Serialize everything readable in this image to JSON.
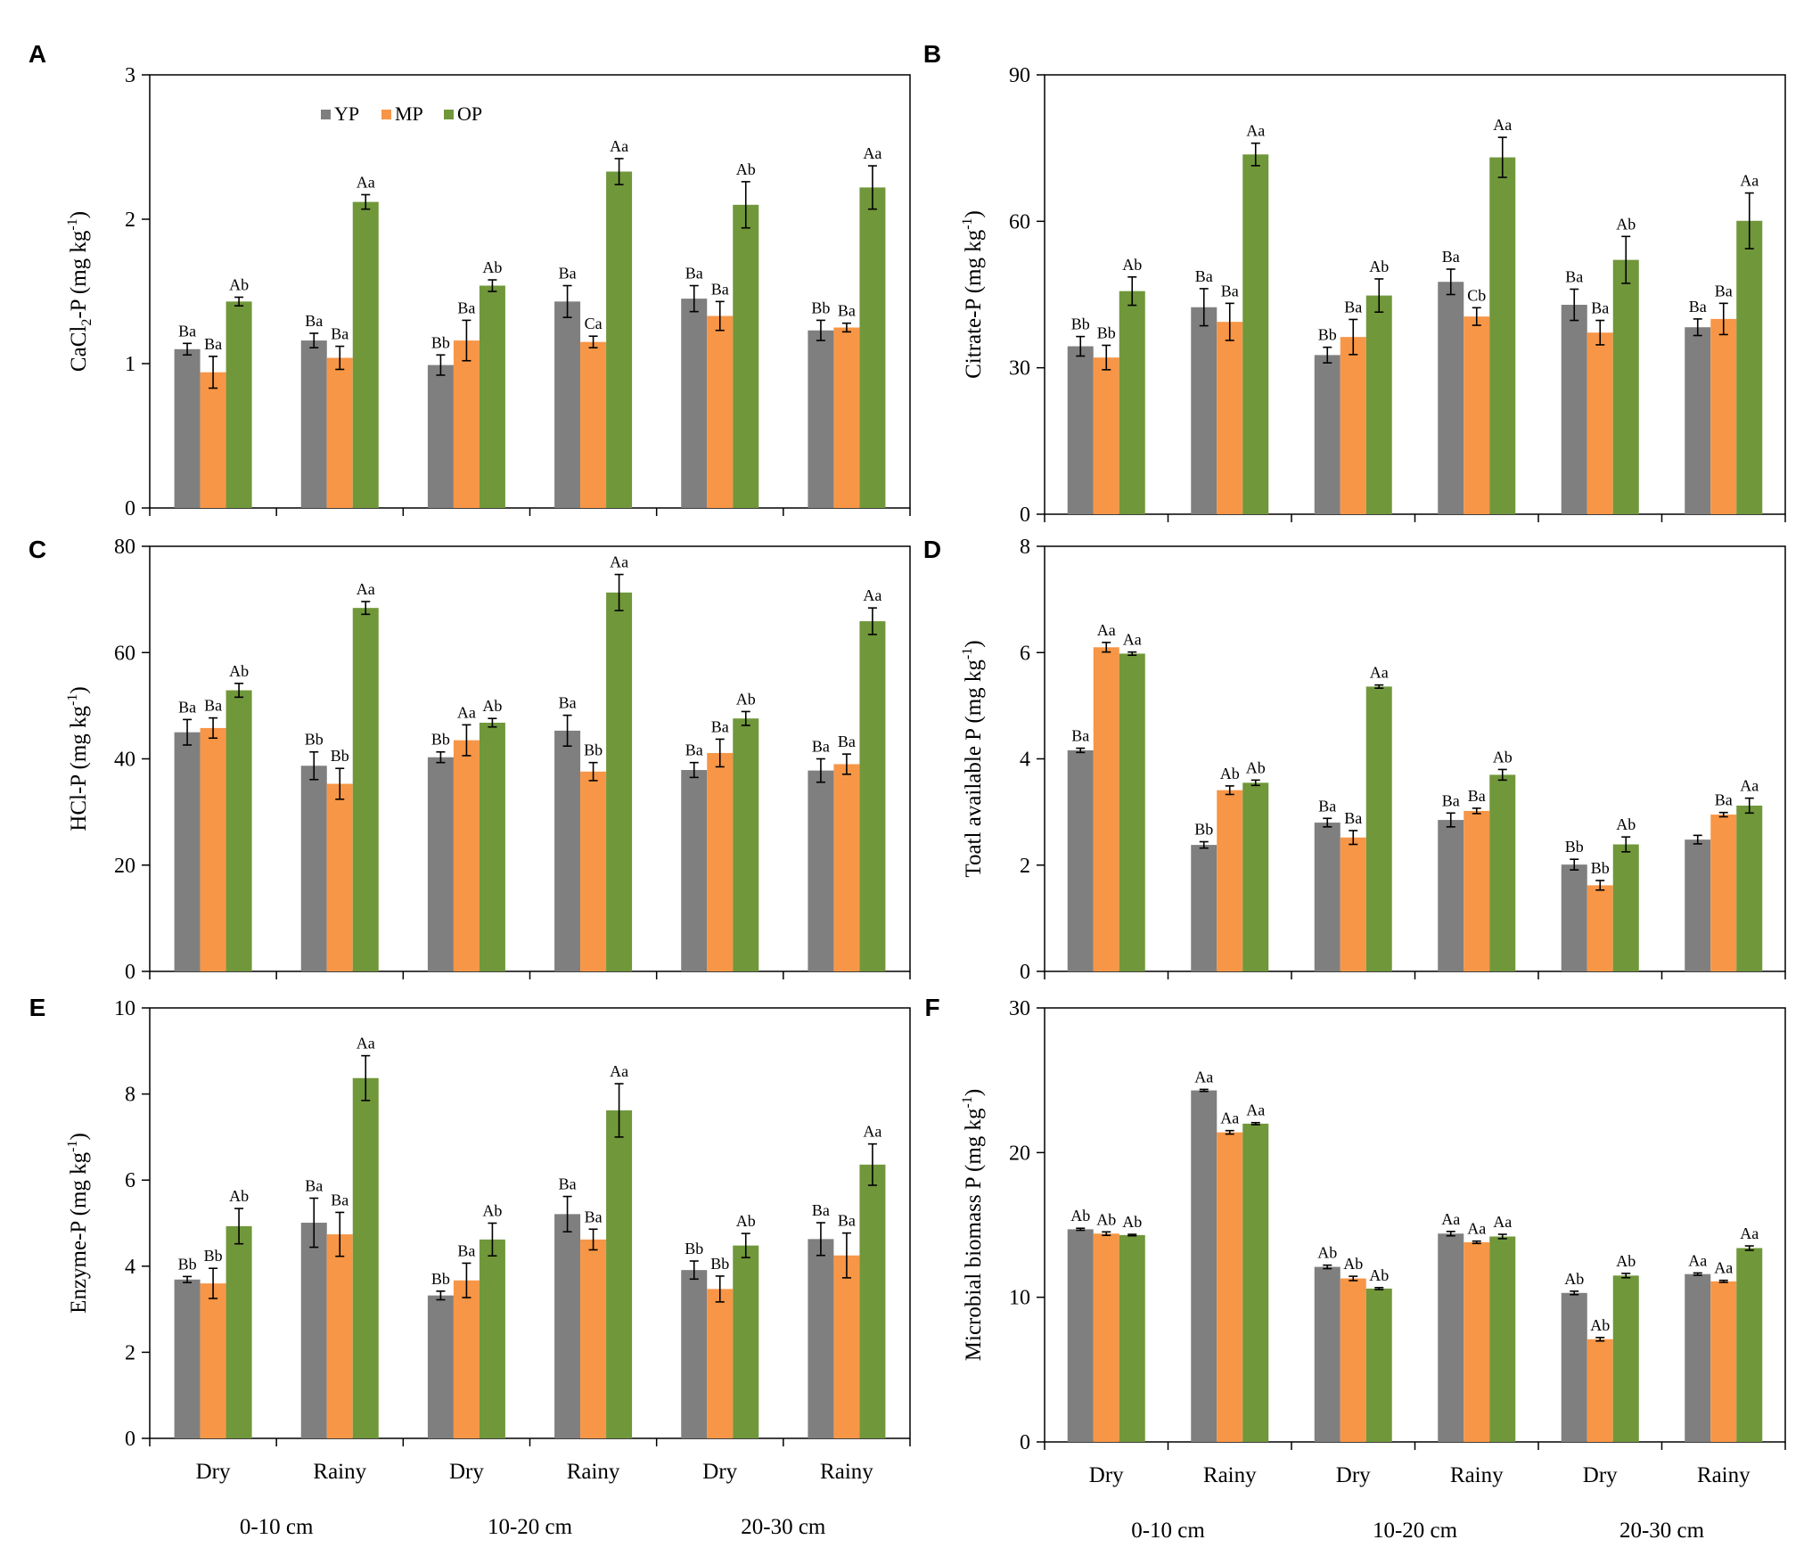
{
  "colors": {
    "YP": "#7f7f7f",
    "MP": "#f79646",
    "OP": "#70973a"
  },
  "legend": [
    "YP",
    "MP",
    "OP"
  ],
  "x_categories": [
    "Dry",
    "Rainy",
    "Dry",
    "Rainy",
    "Dry",
    "Rainy"
  ],
  "depth_groups": [
    "0-10 cm",
    "10-20 cm",
    "20-30 cm"
  ],
  "chart_data": [
    {
      "panel": "A",
      "type": "bar",
      "ylabel_main": "CaCl",
      "ylabel_sub": "2",
      "ylabel_rest": "-P (mg kg",
      "ylabel_sup": "-1",
      "ylabel_end": ")",
      "ylim": [
        0,
        3
      ],
      "yticks": [
        0,
        1,
        2,
        3
      ],
      "categories": [
        "Dry",
        "Rainy",
        "Dry",
        "Rainy",
        "Dry",
        "Rainy"
      ],
      "series": [
        {
          "name": "YP",
          "values": [
            1.1,
            1.16,
            0.99,
            1.43,
            1.45,
            1.23
          ],
          "errors": [
            0.04,
            0.05,
            0.07,
            0.11,
            0.09,
            0.07
          ],
          "labels": [
            "Ba",
            "Ba",
            "Bb",
            "Ba",
            "Ba",
            "Bb"
          ]
        },
        {
          "name": "MP",
          "values": [
            0.94,
            1.04,
            1.16,
            1.15,
            1.33,
            1.25
          ],
          "errors": [
            0.11,
            0.08,
            0.14,
            0.04,
            0.1,
            0.03
          ],
          "labels": [
            "Ba",
            "Ba",
            "Ba",
            "Ca",
            "Ba",
            "Ba"
          ]
        },
        {
          "name": "OP",
          "values": [
            1.43,
            2.12,
            1.54,
            2.33,
            2.1,
            2.22
          ],
          "errors": [
            0.03,
            0.05,
            0.04,
            0.09,
            0.16,
            0.15
          ],
          "labels": [
            "Ab",
            "Aa",
            "Ab",
            "Aa",
            "Ab",
            "Aa"
          ]
        }
      ]
    },
    {
      "panel": "B",
      "type": "bar",
      "ylabel_main": "Citrate-P (mg kg",
      "ylabel_sub": "",
      "ylabel_rest": "",
      "ylabel_sup": "-1",
      "ylabel_end": ")",
      "ylim": [
        0,
        90
      ],
      "yticks": [
        0,
        30,
        60,
        90
      ],
      "categories": [
        "Dry",
        "Rainy",
        "Dry",
        "Rainy",
        "Dry",
        "Rainy"
      ],
      "series": [
        {
          "name": "YP",
          "values": [
            34.4,
            42.4,
            32.6,
            47.6,
            42.9,
            38.3
          ],
          "errors": [
            2.0,
            3.8,
            1.6,
            2.6,
            3.2,
            1.7
          ],
          "labels": [
            "Bb",
            "Ba",
            "Bb",
            "Ba",
            "Ba",
            "Ba"
          ]
        },
        {
          "name": "MP",
          "values": [
            32.1,
            39.4,
            36.3,
            40.5,
            37.2,
            40.0
          ],
          "errors": [
            2.5,
            3.8,
            3.6,
            1.8,
            2.5,
            3.2
          ],
          "labels": [
            "Bb",
            "Ba",
            "Ba",
            "Cb",
            "Ba",
            "Ba"
          ]
        },
        {
          "name": "OP",
          "values": [
            45.7,
            73.7,
            44.8,
            73.1,
            52.1,
            60.1
          ],
          "errors": [
            2.9,
            2.3,
            3.4,
            4.1,
            4.8,
            5.7
          ],
          "labels": [
            "Ab",
            "Aa",
            "Ab",
            "Aa",
            "Ab",
            "Aa"
          ]
        }
      ]
    },
    {
      "panel": "C",
      "type": "bar",
      "ylabel_main": "HCl-P (mg kg",
      "ylabel_sub": "",
      "ylabel_rest": "",
      "ylabel_sup": "-1",
      "ylabel_end": ")",
      "ylim": [
        0,
        80
      ],
      "yticks": [
        0,
        20,
        40,
        60,
        80
      ],
      "categories": [
        "Dry",
        "Rainy",
        "Dry",
        "Rainy",
        "Dry",
        "Rainy"
      ],
      "series": [
        {
          "name": "YP",
          "values": [
            45.0,
            38.7,
            40.3,
            45.3,
            37.9,
            37.8
          ],
          "errors": [
            2.4,
            2.6,
            1.0,
            2.9,
            1.4,
            2.2
          ],
          "labels": [
            "Ba",
            "Bb",
            "Bb",
            "Ba",
            "Ba",
            "Ba"
          ]
        },
        {
          "name": "MP",
          "values": [
            45.8,
            35.3,
            43.5,
            37.6,
            41.1,
            39.0
          ],
          "errors": [
            1.9,
            2.9,
            2.9,
            1.7,
            2.6,
            1.9
          ],
          "labels": [
            "Ba",
            "Bb",
            "Aa",
            "Bb",
            "Ba",
            "Ba"
          ]
        },
        {
          "name": "OP",
          "values": [
            52.9,
            68.4,
            46.8,
            71.3,
            47.6,
            65.9
          ],
          "errors": [
            1.3,
            1.2,
            0.8,
            3.4,
            1.3,
            2.5
          ],
          "labels": [
            "Ab",
            "Aa",
            "Ab",
            "Aa",
            "Ab",
            "Aa"
          ]
        }
      ]
    },
    {
      "panel": "D",
      "type": "bar",
      "ylabel_main": "Toatl available P (mg kg",
      "ylabel_sub": "",
      "ylabel_rest": "",
      "ylabel_sup": "-1",
      "ylabel_end": ")",
      "ylim": [
        0,
        8
      ],
      "yticks": [
        0,
        2,
        4,
        6,
        8
      ],
      "categories": [
        "Dry",
        "Rainy",
        "Dry",
        "Rainy",
        "Dry",
        "Rainy"
      ],
      "series": [
        {
          "name": "YP",
          "values": [
            4.16,
            2.38,
            2.8,
            2.85,
            2.01,
            2.48
          ],
          "errors": [
            0.04,
            0.06,
            0.08,
            0.13,
            0.1,
            0.08
          ],
          "labels": [
            "Ba",
            "Bb",
            "Ba",
            "Ba",
            "Bb",
            ""
          ]
        },
        {
          "name": "MP",
          "values": [
            6.1,
            3.41,
            2.52,
            3.02,
            1.62,
            2.95
          ],
          "errors": [
            0.09,
            0.08,
            0.13,
            0.05,
            0.09,
            0.04
          ],
          "labels": [
            "Aa",
            "Ab",
            "Ba",
            "Ba",
            "Bb",
            "Ba"
          ]
        },
        {
          "name": "OP",
          "values": [
            5.98,
            3.55,
            5.36,
            3.7,
            2.39,
            3.12
          ],
          "errors": [
            0.03,
            0.05,
            0.03,
            0.1,
            0.14,
            0.14
          ],
          "labels": [
            "Aa",
            "Ab",
            "Aa",
            "Ab",
            "Ab",
            "Aa"
          ]
        }
      ]
    },
    {
      "panel": "E",
      "type": "bar",
      "ylabel_main": "Enzyme-P (mg kg",
      "ylabel_sub": "",
      "ylabel_rest": "",
      "ylabel_sup": "-1",
      "ylabel_end": ")",
      "ylim": [
        0,
        10
      ],
      "yticks": [
        0,
        2,
        4,
        6,
        8,
        10
      ],
      "categories": [
        "Dry",
        "Rainy",
        "Dry",
        "Rainy",
        "Dry",
        "Rainy"
      ],
      "series": [
        {
          "name": "YP",
          "values": [
            3.69,
            5.01,
            3.32,
            5.21,
            3.91,
            4.63
          ],
          "errors": [
            0.07,
            0.57,
            0.1,
            0.41,
            0.21,
            0.38
          ],
          "labels": [
            "Bb",
            "Ba",
            "Bb",
            "Ba",
            "Bb",
            "Ba"
          ]
        },
        {
          "name": "MP",
          "values": [
            3.6,
            4.74,
            3.67,
            4.62,
            3.47,
            4.25
          ],
          "errors": [
            0.35,
            0.51,
            0.4,
            0.24,
            0.3,
            0.52
          ],
          "labels": [
            "Bb",
            "Ba",
            "Ba",
            "Ba",
            "Bb",
            "Ba"
          ]
        },
        {
          "name": "OP",
          "values": [
            4.93,
            8.37,
            4.62,
            7.62,
            4.48,
            6.36
          ],
          "errors": [
            0.41,
            0.52,
            0.38,
            0.62,
            0.28,
            0.48
          ],
          "labels": [
            "Ab",
            "Aa",
            "Ab",
            "Aa",
            "Ab",
            "Aa"
          ]
        }
      ]
    },
    {
      "panel": "F",
      "type": "bar",
      "ylabel_main": "Microbial biomass P (mg kg",
      "ylabel_sub": "",
      "ylabel_rest": "",
      "ylabel_sup": "-1",
      "ylabel_end": ")",
      "ylim": [
        0,
        30
      ],
      "yticks": [
        0,
        10,
        20,
        30
      ],
      "categories": [
        "Dry",
        "Rainy",
        "Dry",
        "Rainy",
        "Dry",
        "Rainy"
      ],
      "series": [
        {
          "name": "YP",
          "values": [
            14.7,
            24.3,
            12.1,
            14.4,
            10.3,
            11.6
          ],
          "errors": [
            0.07,
            0.07,
            0.12,
            0.15,
            0.12,
            0.08
          ],
          "labels": [
            "Ab",
            "Aa",
            "Ab",
            "Aa",
            "Ab",
            "Aa"
          ]
        },
        {
          "name": "MP",
          "values": [
            14.4,
            21.4,
            11.3,
            13.8,
            7.1,
            11.1
          ],
          "errors": [
            0.12,
            0.12,
            0.15,
            0.08,
            0.12,
            0.07
          ],
          "labels": [
            "Ab",
            "Aa",
            "Ab",
            "Aa",
            "Ab",
            "Aa"
          ]
        },
        {
          "name": "OP",
          "values": [
            14.3,
            22.0,
            10.6,
            14.2,
            11.5,
            13.4
          ],
          "errors": [
            0.05,
            0.07,
            0.07,
            0.15,
            0.15,
            0.15
          ],
          "labels": [
            "Ab",
            "Aa",
            "Ab",
            "Aa",
            "Ab",
            "Aa"
          ]
        }
      ]
    }
  ]
}
